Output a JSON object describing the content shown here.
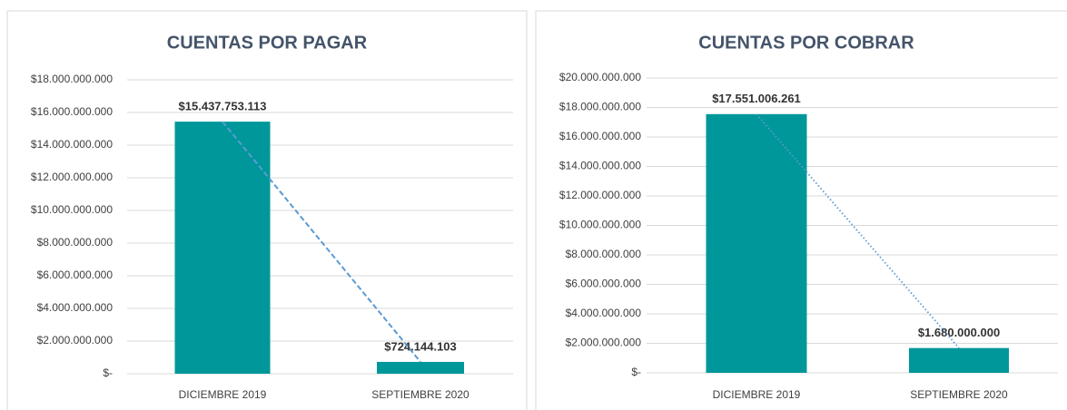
{
  "chart_data": [
    {
      "type": "bar",
      "title": "CUENTAS POR PAGAR",
      "categories": [
        "DICIEMBRE 2019",
        "SEPTIEMBRE 2020"
      ],
      "values": [
        15437753113,
        724144103
      ],
      "value_labels": [
        "$15.437.753.113",
        "$724.144.103"
      ],
      "color": "#00979a",
      "grid": true,
      "trendline": "dashed",
      "ylim": [
        0,
        18000000000
      ],
      "yticks": [
        {
          "value": 0,
          "label": "$-"
        },
        {
          "value": 2000000000,
          "label": "$2.000.000.000"
        },
        {
          "value": 4000000000,
          "label": "$4.000.000.000"
        },
        {
          "value": 6000000000,
          "label": "$6.000.000.000"
        },
        {
          "value": 8000000000,
          "label": "$8.000.000.000"
        },
        {
          "value": 10000000000,
          "label": "$10.000.000.000"
        },
        {
          "value": 12000000000,
          "label": "$12.000.000.000"
        },
        {
          "value": 14000000000,
          "label": "$14.000.000.000"
        },
        {
          "value": 16000000000,
          "label": "$16.000.000.000"
        },
        {
          "value": 18000000000,
          "label": "$18.000.000.000"
        }
      ]
    },
    {
      "type": "bar",
      "title": "CUENTAS POR COBRAR",
      "categories": [
        "DICIEMBRE 2019",
        "SEPTIEMBRE 2020"
      ],
      "values": [
        17551006261,
        1680000000
      ],
      "value_labels": [
        "$17.551.006.261",
        "$1.680.000.000"
      ],
      "color": "#00979a",
      "grid": true,
      "trendline": "dotted",
      "ylim": [
        0,
        20000000000
      ],
      "yticks": [
        {
          "value": 0,
          "label": "$-"
        },
        {
          "value": 2000000000,
          "label": "$2.000.000.000"
        },
        {
          "value": 4000000000,
          "label": "$4.000.000.000"
        },
        {
          "value": 6000000000,
          "label": "$6.000.000.000"
        },
        {
          "value": 8000000000,
          "label": "$8.000.000.000"
        },
        {
          "value": 10000000000,
          "label": "$10.000.000.000"
        },
        {
          "value": 12000000000,
          "label": "$12.000.000.000"
        },
        {
          "value": 14000000000,
          "label": "$14.000.000.000"
        },
        {
          "value": 16000000000,
          "label": "$16.000.000.000"
        },
        {
          "value": 18000000000,
          "label": "$18.000.000.000"
        },
        {
          "value": 20000000000,
          "label": "$20.000.000.000"
        }
      ]
    }
  ]
}
